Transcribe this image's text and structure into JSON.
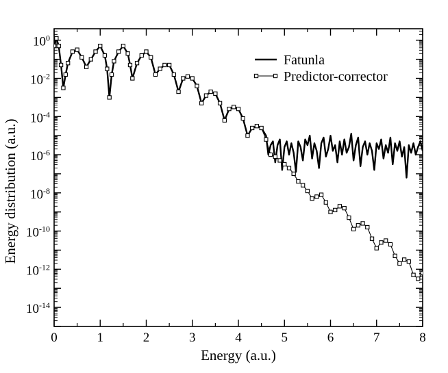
{
  "chart_data": {
    "type": "line",
    "title": "",
    "xlabel": "Energy (a.u.)",
    "ylabel": "Energy distribution (a.u.)",
    "xlim": [
      0,
      8
    ],
    "ylim_log10": [
      -15,
      0.6
    ],
    "xscale": "linear",
    "yscale": "log",
    "x_ticks": [
      "0",
      "1",
      "2",
      "3",
      "4",
      "5",
      "6",
      "7",
      "8"
    ],
    "y_ticks": [
      {
        "base": "10",
        "exp": "0"
      },
      {
        "base": "10",
        "exp": "-2"
      },
      {
        "base": "10",
        "exp": "-4"
      },
      {
        "base": "10",
        "exp": "-6"
      },
      {
        "base": "10",
        "exp": "-8"
      },
      {
        "base": "10",
        "exp": "-10"
      },
      {
        "base": "10",
        "exp": "-12"
      },
      {
        "base": "10",
        "exp": "-14"
      }
    ],
    "legend_position": "top-right",
    "colors": {
      "line": "#000000",
      "background": "#ffffff"
    },
    "series": [
      {
        "name": "Fatunla",
        "style": "thick-line",
        "x": [
          0,
          0.05,
          0.1,
          0.15,
          0.2,
          0.25,
          0.3,
          0.4,
          0.5,
          0.6,
          0.7,
          0.8,
          0.9,
          1.0,
          1.1,
          1.15,
          1.2,
          1.25,
          1.3,
          1.4,
          1.5,
          1.6,
          1.65,
          1.7,
          1.8,
          1.9,
          2.0,
          2.1,
          2.2,
          2.3,
          2.4,
          2.5,
          2.6,
          2.7,
          2.8,
          2.9,
          3.0,
          3.1,
          3.2,
          3.3,
          3.4,
          3.5,
          3.6,
          3.7,
          3.8,
          3.9,
          4.0,
          4.1,
          4.2,
          4.3,
          4.4,
          4.5,
          4.6,
          4.65,
          4.7,
          4.75,
          4.8,
          4.85,
          4.9,
          4.95,
          5.0,
          5.05,
          5.1,
          5.15,
          5.2,
          5.25,
          5.3,
          5.35,
          5.4,
          5.45,
          5.5,
          5.55,
          5.6,
          5.65,
          5.7,
          5.75,
          5.8,
          5.85,
          5.9,
          5.95,
          6.0,
          6.05,
          6.1,
          6.15,
          6.2,
          6.25,
          6.3,
          6.35,
          6.4,
          6.45,
          6.5,
          6.55,
          6.6,
          6.65,
          6.7,
          6.75,
          6.8,
          6.85,
          6.9,
          6.95,
          7.0,
          7.05,
          7.1,
          7.15,
          7.2,
          7.25,
          7.3,
          7.35,
          7.4,
          7.45,
          7.5,
          7.55,
          7.6,
          7.65,
          7.7,
          7.75,
          7.8,
          7.85,
          7.9,
          7.95,
          8.0
        ],
        "log10_y": [
          -0.3,
          0.1,
          -0.3,
          -1.3,
          -2.5,
          -1.8,
          -1.2,
          -0.6,
          -0.5,
          -0.9,
          -1.4,
          -1.0,
          -0.6,
          -0.3,
          -0.8,
          -1.5,
          -3.0,
          -1.8,
          -1.1,
          -0.6,
          -0.3,
          -0.7,
          -1.3,
          -2.0,
          -1.2,
          -0.8,
          -0.6,
          -0.9,
          -1.8,
          -1.5,
          -1.3,
          -1.3,
          -1.8,
          -2.7,
          -2.0,
          -1.9,
          -2.0,
          -2.4,
          -3.3,
          -2.9,
          -2.7,
          -2.8,
          -3.3,
          -4.2,
          -3.6,
          -3.5,
          -3.6,
          -4.1,
          -5.0,
          -4.6,
          -4.5,
          -4.6,
          -5.0,
          -6.0,
          -5.5,
          -5.3,
          -6.4,
          -5.5,
          -5.2,
          -6.8,
          -5.6,
          -5.3,
          -6.0,
          -5.4,
          -5.9,
          -6.9,
          -5.3,
          -5.6,
          -6.3,
          -5.2,
          -5.5,
          -5.0,
          -6.2,
          -5.4,
          -5.8,
          -6.7,
          -5.4,
          -5.1,
          -6.1,
          -5.7,
          -5.0,
          -5.8,
          -5.5,
          -6.4,
          -5.3,
          -6.0,
          -5.2,
          -5.9,
          -5.6,
          -4.9,
          -6.3,
          -5.5,
          -5.1,
          -6.6,
          -5.6,
          -5.3,
          -6.0,
          -5.4,
          -5.8,
          -6.8,
          -5.4,
          -5.7,
          -5.2,
          -6.2,
          -5.5,
          -5.9,
          -5.1,
          -6.5,
          -5.4,
          -5.8,
          -5.3,
          -6.1,
          -5.6,
          -7.2,
          -5.5,
          -5.9,
          -5.4,
          -6.0,
          -5.6,
          -5.3,
          -5.8
        ],
        "color": "#000000"
      },
      {
        "name": "Predictor-corrector",
        "style": "thin-line-square-markers",
        "x": [
          0,
          0.05,
          0.1,
          0.15,
          0.2,
          0.25,
          0.3,
          0.4,
          0.5,
          0.6,
          0.7,
          0.8,
          0.9,
          1.0,
          1.1,
          1.15,
          1.2,
          1.25,
          1.3,
          1.4,
          1.5,
          1.6,
          1.65,
          1.7,
          1.8,
          1.9,
          2.0,
          2.1,
          2.2,
          2.3,
          2.4,
          2.5,
          2.6,
          2.7,
          2.8,
          2.9,
          3.0,
          3.1,
          3.2,
          3.3,
          3.4,
          3.5,
          3.6,
          3.7,
          3.8,
          3.9,
          4.0,
          4.1,
          4.2,
          4.3,
          4.4,
          4.5,
          4.6,
          4.7,
          4.8,
          4.9,
          5.0,
          5.1,
          5.2,
          5.3,
          5.4,
          5.5,
          5.6,
          5.7,
          5.8,
          5.9,
          6.0,
          6.1,
          6.2,
          6.3,
          6.4,
          6.5,
          6.6,
          6.7,
          6.8,
          6.9,
          7.0,
          7.1,
          7.2,
          7.3,
          7.4,
          7.5,
          7.6,
          7.7,
          7.8,
          7.9,
          8.0
        ],
        "log10_y": [
          -0.3,
          0.1,
          -0.3,
          -1.3,
          -2.5,
          -1.8,
          -1.2,
          -0.6,
          -0.5,
          -0.9,
          -1.4,
          -1.0,
          -0.6,
          -0.3,
          -0.8,
          -1.5,
          -3.0,
          -1.8,
          -1.1,
          -0.6,
          -0.3,
          -0.7,
          -1.3,
          -2.0,
          -1.2,
          -0.8,
          -0.6,
          -0.9,
          -1.8,
          -1.5,
          -1.3,
          -1.3,
          -1.8,
          -2.7,
          -2.0,
          -1.9,
          -2.0,
          -2.4,
          -3.3,
          -2.9,
          -2.7,
          -2.8,
          -3.3,
          -4.2,
          -3.6,
          -3.5,
          -3.6,
          -4.1,
          -5.0,
          -4.6,
          -4.5,
          -4.6,
          -5.2,
          -6.0,
          -6.1,
          -6.3,
          -6.5,
          -6.7,
          -7.0,
          -7.4,
          -7.6,
          -7.9,
          -8.3,
          -8.2,
          -8.1,
          -8.5,
          -9.0,
          -8.9,
          -8.7,
          -8.8,
          -9.3,
          -9.9,
          -9.7,
          -9.6,
          -9.8,
          -10.4,
          -10.9,
          -10.6,
          -10.5,
          -10.7,
          -11.3,
          -11.7,
          -11.5,
          -11.6,
          -12.3,
          -12.5,
          -12.2
        ]
      }
    ]
  }
}
